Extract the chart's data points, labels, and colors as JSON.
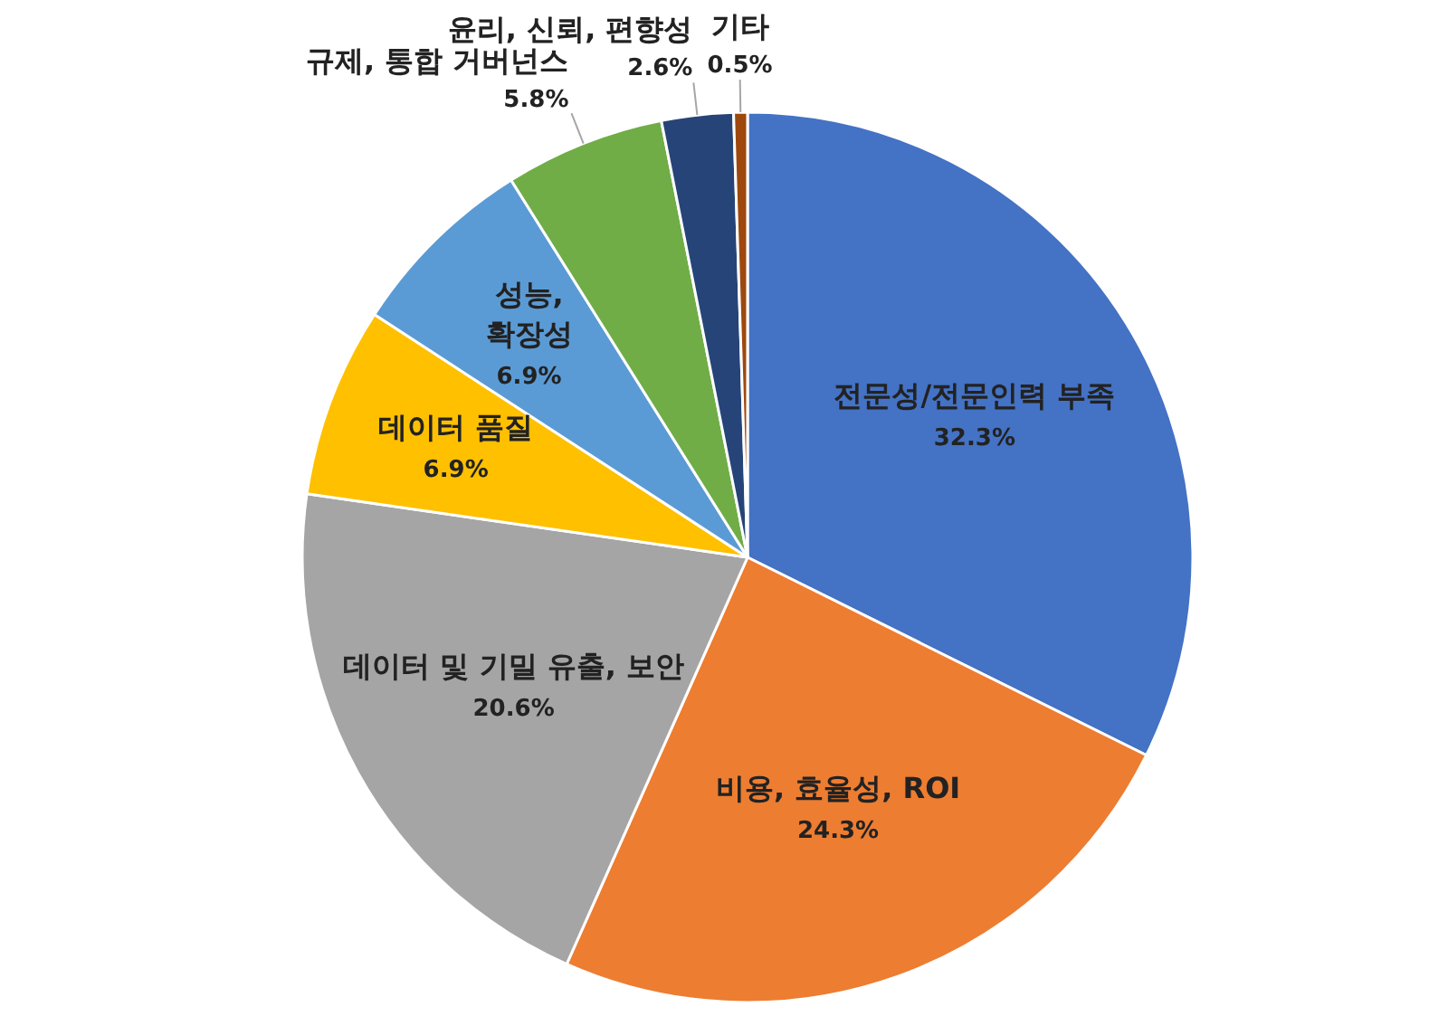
{
  "chart_data": {
    "type": "pie",
    "categories": [
      "전문성/전문인력 부족",
      "비용, 효율성, ROI",
      "데이터 및 기밀 유출, 보안",
      "데이터 품질",
      "성능, 확장성",
      "규제, 통합 거버넌스",
      "윤리, 신뢰, 편향성",
      "기타"
    ],
    "values": [
      32.3,
      24.3,
      20.6,
      6.9,
      6.9,
      5.8,
      2.6,
      0.5
    ],
    "value_labels": [
      "32.3%",
      "24.3%",
      "20.6%",
      "6.9%",
      "6.9%",
      "5.8%",
      "2.6%",
      "0.5%"
    ],
    "colors": [
      "#4472c4",
      "#ed7d31",
      "#a5a5a5",
      "#ffc000",
      "#5b9bd5",
      "#70ad47",
      "#264478",
      "#9e480e"
    ]
  }
}
